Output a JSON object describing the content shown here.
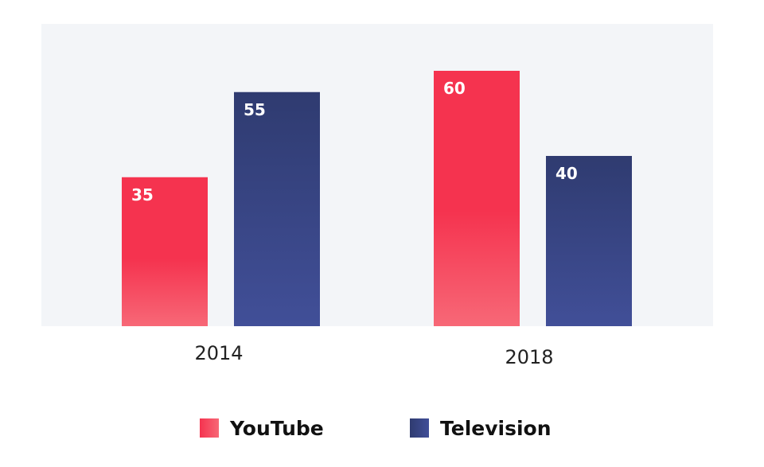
{
  "colors": {
    "plot_background": "#f3f5f8",
    "youtube_top": "#f5334f",
    "youtube_bottom": "#f76877",
    "television_top": "#2f3b70",
    "television_bottom": "#414f98"
  },
  "chart_data": {
    "type": "bar",
    "categories": [
      "2014",
      "2018"
    ],
    "series": [
      {
        "name": "YouTube",
        "values": [
          35,
          60
        ]
      },
      {
        "name": "Television",
        "values": [
          55,
          40
        ]
      }
    ],
    "title": "",
    "xlabel": "",
    "ylabel": "",
    "ylim": [
      0,
      70
    ],
    "grid": false,
    "legend_position": "bottom"
  }
}
